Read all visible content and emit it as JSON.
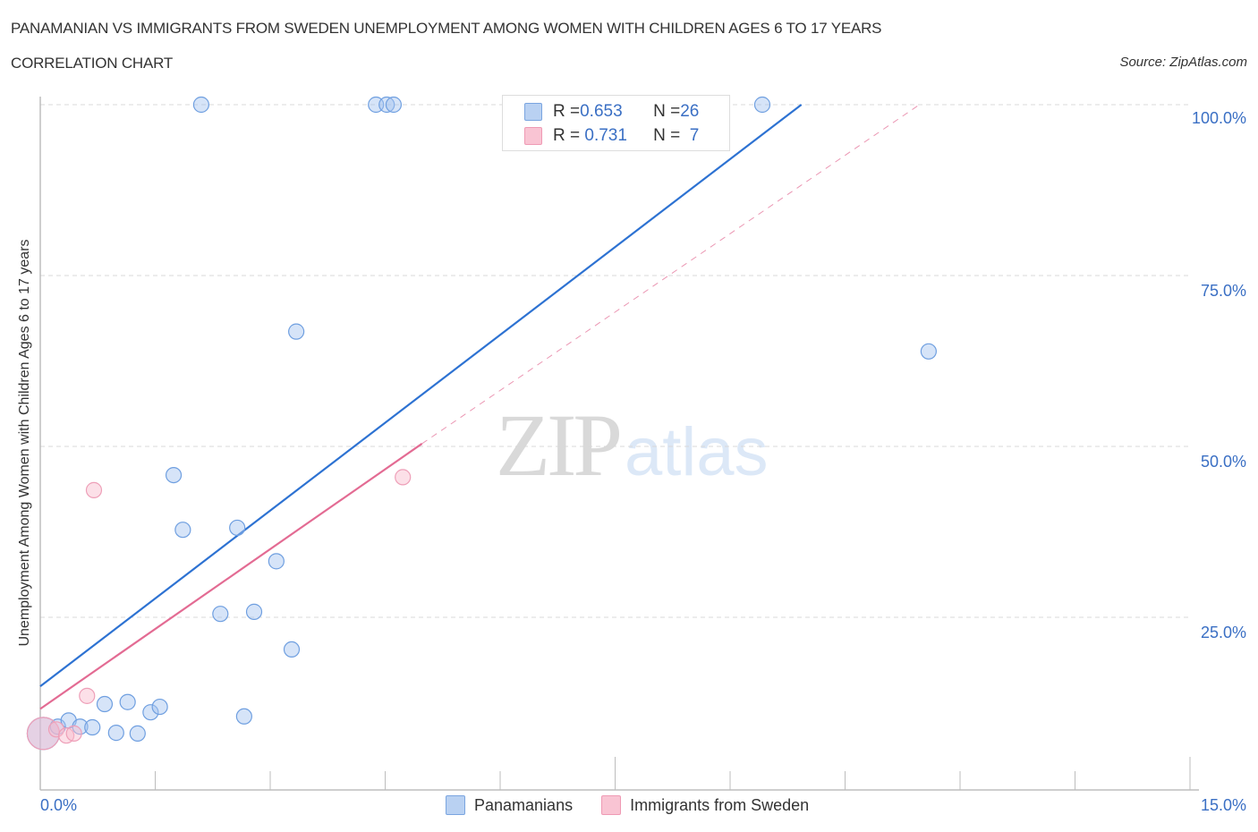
{
  "header": {
    "title": "PANAMANIAN VS IMMIGRANTS FROM SWEDEN UNEMPLOYMENT AMONG WOMEN WITH CHILDREN AGES 6 TO 17 YEARS",
    "subtitle": "CORRELATION CHART",
    "source": "Source: ZipAtlas.com"
  },
  "watermark": {
    "zip": "ZIP",
    "atlas": "atlas"
  },
  "legend": {
    "rows": [
      {
        "r_label": "R = ",
        "r_value": "0.653",
        "n_label": "N = ",
        "n_value": "26",
        "color": "#b9d1f2",
        "border": "#7aa5e0"
      },
      {
        "r_label": "R = ",
        "r_value": " 0.731",
        "n_label": "N = ",
        "n_value": "  7",
        "color": "#f9c4d3",
        "border": "#ef9ab4"
      }
    ]
  },
  "axes": {
    "y_title": "Unemployment Among Women with Children Ages 6 to 17 years",
    "x_min_label": "0.0%",
    "x_max_label": "15.0%",
    "y_ticks": [
      "100.0%",
      "75.0%",
      "50.0%",
      "25.0%"
    ]
  },
  "bottom_legend": [
    {
      "label": "Panamanians",
      "color": "#b9d1f2",
      "border": "#7aa5e0"
    },
    {
      "label": "Immigrants from Sweden",
      "color": "#f9c4d3",
      "border": "#ef9ab4"
    }
  ],
  "colors": {
    "blue_line": "#2d72d2",
    "pink_line": "#e36b93",
    "blue_fill": "rgba(164,196,240,0.45)",
    "blue_stroke": "#6f9fe0",
    "pink_fill": "rgba(248,186,204,0.45)",
    "pink_stroke": "#ee9fb8",
    "grid": "#d8d8d8",
    "axis": "#bdbdbd"
  },
  "chart_data": {
    "type": "scatter",
    "title": "PANAMANIAN VS IMMIGRANTS FROM SWEDEN UNEMPLOYMENT AMONG WOMEN WITH CHILDREN AGES 6 TO 17 YEARS",
    "subtitle": "CORRELATION CHART",
    "xlabel": "",
    "ylabel": "Unemployment Among Women with Children Ages 6 to 17 years",
    "xlim": [
      0,
      15
    ],
    "ylim": [
      0,
      100
    ],
    "x_tick_labels": [
      "0.0%",
      "15.0%"
    ],
    "y_tick_labels": [
      "25.0%",
      "50.0%",
      "75.0%",
      "100.0%"
    ],
    "grid": "horizontal dashed",
    "legend_position": "top-center (stats) and bottom-center (series)",
    "series": [
      {
        "name": "Panamanians",
        "R": 0.653,
        "N": 26,
        "points": [
          {
            "x": 0.04,
            "y": 8.0,
            "size": "large"
          },
          {
            "x": 0.23,
            "y": 9.0
          },
          {
            "x": 0.37,
            "y": 9.9
          },
          {
            "x": 0.52,
            "y": 9.0
          },
          {
            "x": 0.68,
            "y": 8.9
          },
          {
            "x": 0.84,
            "y": 12.3
          },
          {
            "x": 0.99,
            "y": 8.1
          },
          {
            "x": 1.14,
            "y": 12.6
          },
          {
            "x": 1.27,
            "y": 8.0
          },
          {
            "x": 1.44,
            "y": 11.1
          },
          {
            "x": 1.56,
            "y": 11.9
          },
          {
            "x": 1.74,
            "y": 45.8
          },
          {
            "x": 1.86,
            "y": 37.8
          },
          {
            "x": 2.1,
            "y": 100.0
          },
          {
            "x": 2.35,
            "y": 25.5
          },
          {
            "x": 2.57,
            "y": 38.1
          },
          {
            "x": 2.66,
            "y": 10.5
          },
          {
            "x": 2.79,
            "y": 25.8
          },
          {
            "x": 3.08,
            "y": 33.2
          },
          {
            "x": 3.28,
            "y": 20.3
          },
          {
            "x": 3.34,
            "y": 66.8
          },
          {
            "x": 4.38,
            "y": 100.0
          },
          {
            "x": 4.52,
            "y": 100.0
          },
          {
            "x": 4.61,
            "y": 100.0
          },
          {
            "x": 9.42,
            "y": 100.0
          },
          {
            "x": 11.59,
            "y": 63.9
          }
        ],
        "trendline": {
          "x0": 0,
          "y0": 14.9,
          "x1": 9.93,
          "y1": 100.0,
          "style": "solid"
        }
      },
      {
        "name": "Immigrants from Sweden",
        "R": 0.731,
        "N": 7,
        "points": [
          {
            "x": 0.04,
            "y": 8.0,
            "size": "large"
          },
          {
            "x": 0.21,
            "y": 8.6
          },
          {
            "x": 0.34,
            "y": 7.7
          },
          {
            "x": 0.44,
            "y": 8.0
          },
          {
            "x": 0.61,
            "y": 13.5
          },
          {
            "x": 0.7,
            "y": 43.6
          },
          {
            "x": 4.73,
            "y": 45.5
          }
        ],
        "trendline": {
          "x0": 0,
          "y0": 11.6,
          "x1": 4.98,
          "y1": 50.4,
          "style": "solid",
          "extension": {
            "x1": 11.47,
            "y1": 100.0,
            "style": "dashed"
          }
        }
      }
    ]
  }
}
